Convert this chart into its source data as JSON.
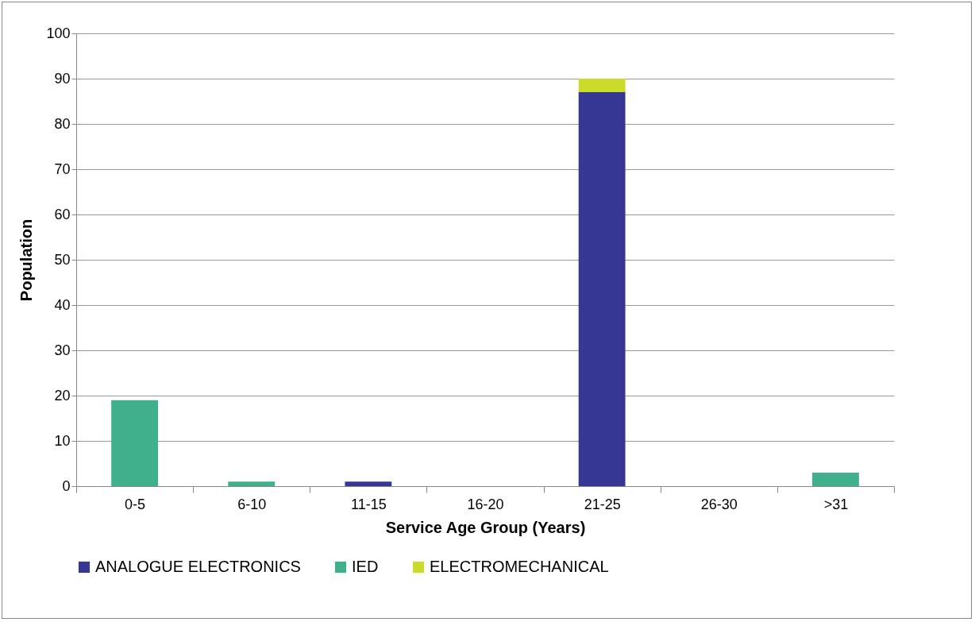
{
  "chart_data": {
    "type": "bar",
    "stacked": true,
    "xlabel": "Service Age Group (Years)",
    "ylabel": "Population",
    "categories": [
      "0-5",
      "6-10",
      "11-15",
      "16-20",
      "21-25",
      "26-30",
      ">31"
    ],
    "series": [
      {
        "name": "ANALOGUE ELECTRONICS",
        "color": "#363795",
        "values": [
          null,
          null,
          1,
          null,
          87,
          null,
          null
        ]
      },
      {
        "name": "IED",
        "color": "#40b08c",
        "values": [
          19,
          1,
          null,
          null,
          null,
          null,
          3
        ]
      },
      {
        "name": "ELECTROMECHANICAL",
        "color": "#cbdb2a",
        "values": [
          null,
          null,
          null,
          null,
          3,
          null,
          null
        ]
      }
    ],
    "ylim": [
      0,
      100
    ],
    "yticks": [
      0,
      10,
      20,
      30,
      40,
      50,
      60,
      70,
      80,
      90,
      100
    ],
    "grid": "y",
    "legend": "bottom"
  }
}
